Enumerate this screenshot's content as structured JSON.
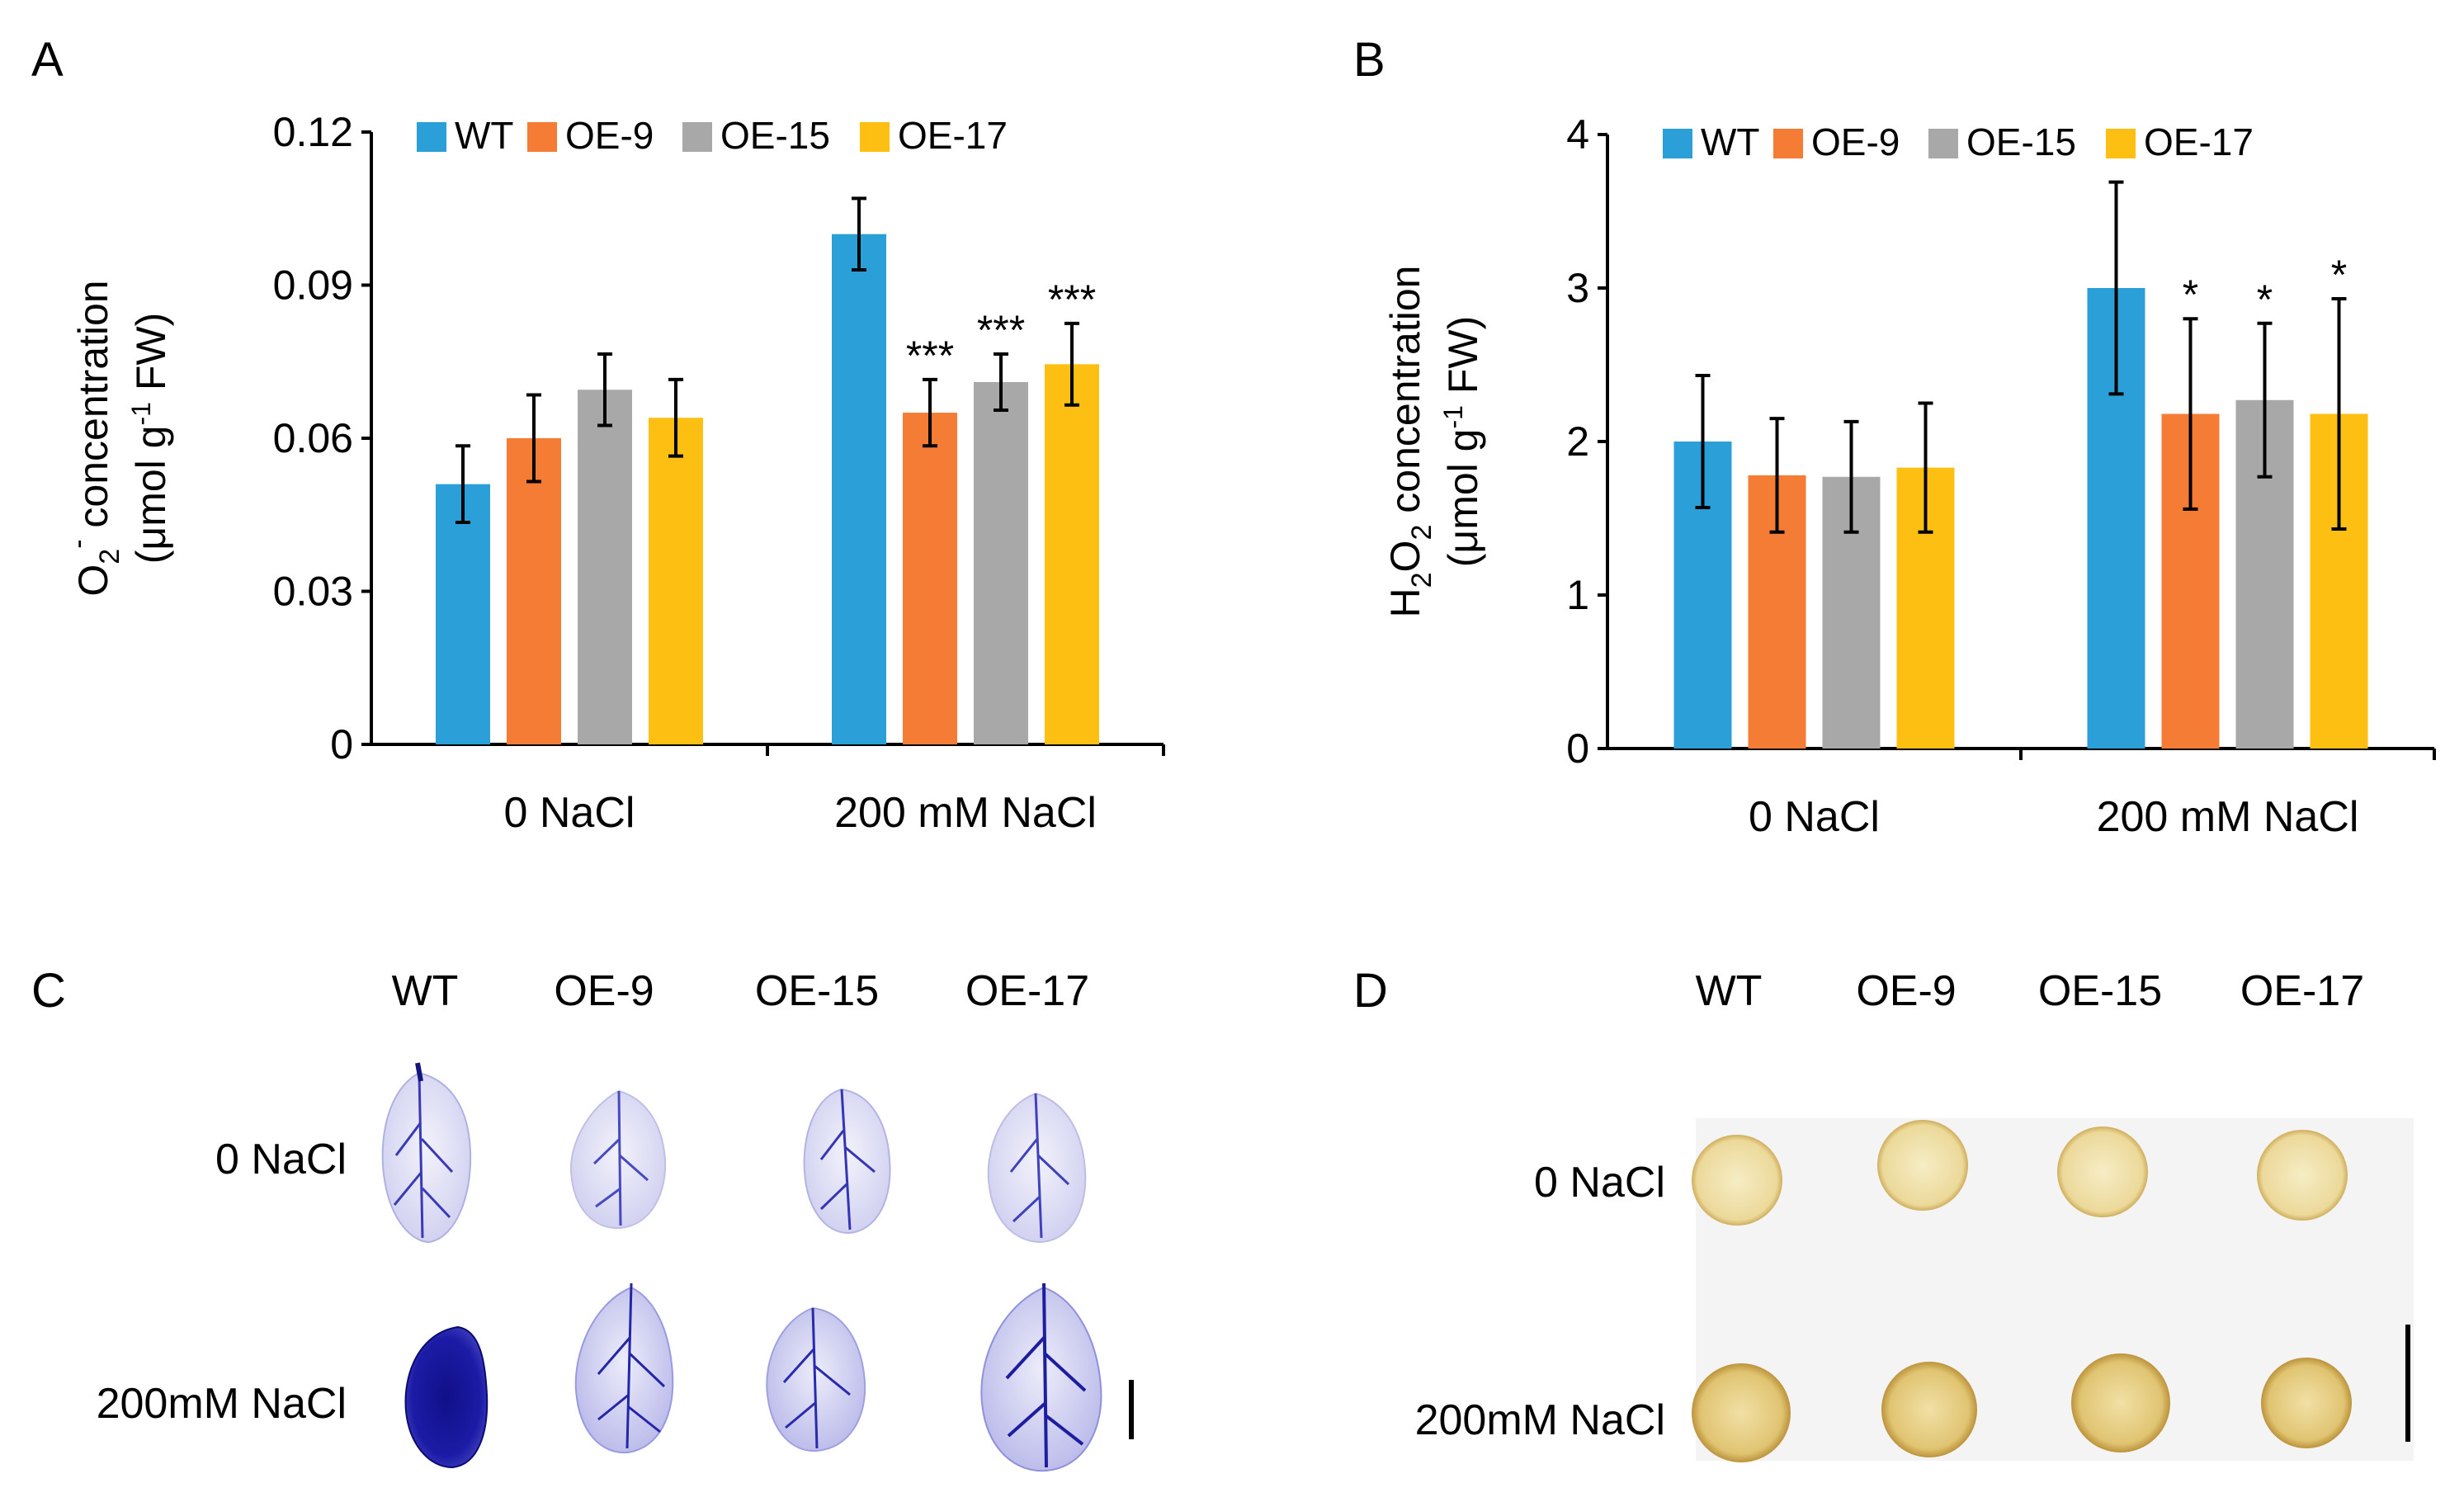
{
  "panels": {
    "A": {
      "letter": "A"
    },
    "B": {
      "letter": "B"
    },
    "C": {
      "letter": "C"
    },
    "D": {
      "letter": "D"
    }
  },
  "colors": {
    "WT": "#2a9fd8",
    "OE-9": "#f47c34",
    "OE-15": "#a8a8a8",
    "OE-17": "#fdbf12"
  },
  "chart_data": [
    {
      "panel": "A",
      "type": "bar",
      "categories": [
        "0 NaCl",
        "200 mM NaCl"
      ],
      "ylabel_line1": "O",
      "ylabel_sub": "2",
      "ylabel_sup": "-",
      "ylabel_rest": " concentration",
      "ylabel_line2": "(μmol g",
      "ylabel_line2_sup": "-1",
      "ylabel_line2_rest": " FW)",
      "ylim": [
        0,
        0.12
      ],
      "yticks": [
        "0",
        "0.03",
        "0.06",
        "0.09",
        "0.12"
      ],
      "ytick_values": [
        0,
        0.03,
        0.06,
        0.09,
        0.12
      ],
      "legend": [
        "WT",
        "OE-9",
        "OE-15",
        "OE-17"
      ],
      "series": [
        {
          "name": "WT",
          "values": [
            0.051,
            0.1
          ],
          "errors": [
            0.0075,
            0.007
          ]
        },
        {
          "name": "OE-9",
          "values": [
            0.06,
            0.065
          ],
          "errors": [
            0.0085,
            0.0065
          ]
        },
        {
          "name": "OE-15",
          "values": [
            0.0695,
            0.071
          ],
          "errors": [
            0.007,
            0.0055
          ]
        },
        {
          "name": "OE-17",
          "values": [
            0.064,
            0.0745
          ],
          "errors": [
            0.0075,
            0.008
          ]
        }
      ],
      "significance": [
        {
          "series": "OE-9",
          "category": 1,
          "label": "***"
        },
        {
          "series": "OE-15",
          "category": 1,
          "label": "***"
        },
        {
          "series": "OE-17",
          "category": 1,
          "label": "***"
        }
      ]
    },
    {
      "panel": "B",
      "type": "bar",
      "categories": [
        "0 NaCl",
        "200 mM NaCl"
      ],
      "ylabel_line1": "H",
      "ylabel_sub": "2",
      "ylabel_mid": "O",
      "ylabel_sub2": "2",
      "ylabel_rest": " concentration",
      "ylabel_line2": "(μmol g",
      "ylabel_line2_sup": "-1",
      "ylabel_line2_rest": " FW)",
      "ylim": [
        0,
        4
      ],
      "yticks": [
        "0",
        "1",
        "2",
        "3",
        "4"
      ],
      "ytick_values": [
        0,
        1,
        2,
        3,
        4
      ],
      "legend": [
        "WT",
        "OE-9",
        "OE-15",
        "OE-17"
      ],
      "series": [
        {
          "name": "WT",
          "values": [
            2.0,
            3.0
          ],
          "errors": [
            0.43,
            0.69
          ]
        },
        {
          "name": "OE-9",
          "values": [
            1.78,
            2.18
          ],
          "errors": [
            0.37,
            0.62
          ]
        },
        {
          "name": "OE-15",
          "values": [
            1.77,
            2.27
          ],
          "errors": [
            0.36,
            0.5
          ]
        },
        {
          "name": "OE-17",
          "values": [
            1.83,
            2.18
          ],
          "errors": [
            0.42,
            0.75
          ]
        }
      ],
      "significance": [
        {
          "series": "OE-9",
          "category": 1,
          "label": "*"
        },
        {
          "series": "OE-15",
          "category": 1,
          "label": "*"
        },
        {
          "series": "OE-17",
          "category": 1,
          "label": "*"
        }
      ]
    }
  ],
  "photoC": {
    "columns": [
      "WT",
      "OE-9",
      "OE-15",
      "OE-17"
    ],
    "rows": [
      "0 NaCl",
      "200mM NaCl"
    ]
  },
  "photoD": {
    "columns": [
      "WT",
      "OE-9",
      "OE-15",
      "OE-17"
    ],
    "rows": [
      "0 NaCl",
      "200mM NaCl"
    ]
  }
}
